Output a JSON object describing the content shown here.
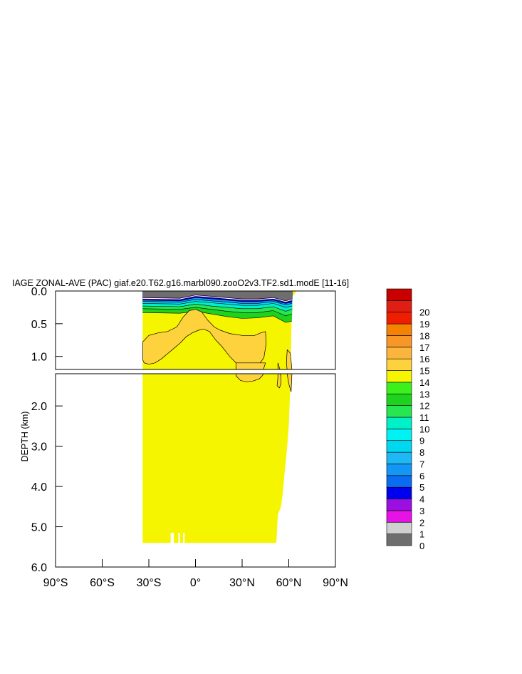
{
  "chart_data": {
    "type": "heatmap",
    "title": "IAGE ZONAL-AVE (PAC) giaf.e20.T62.g16.marbl090.zooO2v3.TF2.sd1.modE [11-16]",
    "ylabel": "DEPTH (km)",
    "xlabel": "",
    "x_range": [
      -90,
      90
    ],
    "y_range": [
      0,
      6
    ],
    "y_axis_inverted": true,
    "upper_panel_range": [
      0,
      1.2
    ],
    "lower_panel_range": [
      1.2,
      6
    ],
    "x_ticks": [
      {
        "value": -90,
        "label": "90°S"
      },
      {
        "value": -60,
        "label": "60°S"
      },
      {
        "value": -30,
        "label": "30°S"
      },
      {
        "value": 0,
        "label": "0°"
      },
      {
        "value": 30,
        "label": "30°N"
      },
      {
        "value": 60,
        "label": "60°N"
      },
      {
        "value": 90,
        "label": "90°N"
      }
    ],
    "y_ticks_upper": [
      {
        "value": 0,
        "label": "0.0"
      },
      {
        "value": 0.5,
        "label": "0.5"
      },
      {
        "value": 1.0,
        "label": "1.0"
      }
    ],
    "y_ticks_lower": [
      {
        "value": 2,
        "label": "2.0"
      },
      {
        "value": 3,
        "label": "3.0"
      },
      {
        "value": 4,
        "label": "4.0"
      },
      {
        "value": 5,
        "label": "5.0"
      },
      {
        "value": 6,
        "label": "6.0"
      }
    ],
    "colorbar": {
      "levels": [
        "0",
        "1",
        "2",
        "3",
        "4",
        "5",
        "6",
        "7",
        "8",
        "9",
        "10",
        "11",
        "12",
        "13",
        "14",
        "15",
        "16",
        "17",
        "18",
        "19",
        "20"
      ],
      "colors": [
        "#6e6e6e",
        "#d0d0d0",
        "#e612e6",
        "#9b10e0",
        "#0000f0",
        "#0a6cf0",
        "#1496f5",
        "#1eb8f5",
        "#00d8f0",
        "#00f2f2",
        "#00f0c8",
        "#28e650",
        "#1ed21e",
        "#3cf01e",
        "#f5f500",
        "#fed23c",
        "#fbb43c",
        "#f89628",
        "#f58200",
        "#f01e00",
        "#e11e14",
        "#c80000"
      ]
    },
    "domain": {
      "lat_min": -34,
      "deep_boundary": [
        [
          -34,
          5.4
        ],
        [
          52,
          5.4
        ],
        [
          53,
          4.7
        ],
        [
          55,
          4.5
        ],
        [
          56,
          4.2
        ],
        [
          57,
          3.8
        ],
        [
          58,
          3.4
        ],
        [
          59,
          3.0
        ],
        [
          60,
          2.5
        ],
        [
          61,
          1.5
        ],
        [
          62,
          0.1
        ],
        [
          65,
          0.0
        ]
      ],
      "notches": [
        [
          -16,
          -14
        ],
        [
          -11,
          -10
        ],
        [
          -8,
          -7
        ]
      ],
      "notch_top_depth": 5.15
    },
    "surface_layers": [
      {
        "value": 0,
        "top": [
          [
            -34,
            0.0
          ],
          [
            65,
            0.0
          ]
        ],
        "bottom": [
          [
            -34,
            0.1
          ],
          [
            -10,
            0.11
          ],
          [
            0,
            0.06
          ],
          [
            10,
            0.08
          ],
          [
            20,
            0.1
          ],
          [
            30,
            0.12
          ],
          [
            40,
            0.12
          ],
          [
            50,
            0.1
          ],
          [
            58,
            0.15
          ],
          [
            62,
            0.12
          ]
        ]
      },
      {
        "value": 3,
        "bottom": [
          [
            -34,
            0.13
          ],
          [
            -10,
            0.13
          ],
          [
            0,
            0.08
          ],
          [
            10,
            0.1
          ],
          [
            20,
            0.12
          ],
          [
            30,
            0.14
          ],
          [
            40,
            0.14
          ],
          [
            50,
            0.12
          ],
          [
            58,
            0.17
          ],
          [
            62,
            0.15
          ]
        ]
      },
      {
        "value": 4,
        "bottom": [
          [
            -34,
            0.14
          ],
          [
            -10,
            0.15
          ],
          [
            0,
            0.1
          ],
          [
            10,
            0.12
          ],
          [
            20,
            0.14
          ],
          [
            30,
            0.16
          ],
          [
            40,
            0.16
          ],
          [
            50,
            0.14
          ],
          [
            58,
            0.19
          ],
          [
            62,
            0.17
          ]
        ]
      },
      {
        "value": 6,
        "bottom": [
          [
            -34,
            0.16
          ],
          [
            -10,
            0.17
          ],
          [
            0,
            0.13
          ],
          [
            10,
            0.15
          ],
          [
            20,
            0.17
          ],
          [
            30,
            0.19
          ],
          [
            40,
            0.19
          ],
          [
            50,
            0.16
          ],
          [
            58,
            0.21
          ],
          [
            62,
            0.19
          ]
        ]
      },
      {
        "value": 8,
        "bottom": [
          [
            -34,
            0.19
          ],
          [
            -10,
            0.2
          ],
          [
            0,
            0.16
          ],
          [
            10,
            0.18
          ],
          [
            20,
            0.2
          ],
          [
            30,
            0.22
          ],
          [
            40,
            0.22
          ],
          [
            50,
            0.19
          ],
          [
            58,
            0.25
          ],
          [
            62,
            0.23
          ]
        ]
      },
      {
        "value": 10,
        "bottom": [
          [
            -34,
            0.23
          ],
          [
            -10,
            0.24
          ],
          [
            0,
            0.2
          ],
          [
            10,
            0.23
          ],
          [
            20,
            0.25
          ],
          [
            30,
            0.27
          ],
          [
            40,
            0.27
          ],
          [
            50,
            0.24
          ],
          [
            58,
            0.31
          ],
          [
            62,
            0.28
          ]
        ]
      },
      {
        "value": 11,
        "bottom": [
          [
            -34,
            0.27
          ],
          [
            -10,
            0.28
          ],
          [
            0,
            0.25
          ],
          [
            10,
            0.28
          ],
          [
            20,
            0.31
          ],
          [
            30,
            0.33
          ],
          [
            40,
            0.33
          ],
          [
            50,
            0.3
          ],
          [
            58,
            0.38
          ],
          [
            62,
            0.35
          ]
        ]
      },
      {
        "value": 12,
        "bottom": [
          [
            -34,
            0.33
          ],
          [
            -10,
            0.34
          ],
          [
            0,
            0.31
          ],
          [
            10,
            0.35
          ],
          [
            20,
            0.39
          ],
          [
            30,
            0.42
          ],
          [
            40,
            0.41
          ],
          [
            50,
            0.38
          ],
          [
            58,
            0.48
          ],
          [
            62,
            0.46
          ]
        ]
      }
    ],
    "value_13_regions": [
      {
        "name": "southern-lobe",
        "points": [
          [
            -34,
            0.78
          ],
          [
            -30,
            0.68
          ],
          [
            -24,
            0.64
          ],
          [
            -18,
            0.62
          ],
          [
            -12,
            0.55
          ],
          [
            -8,
            0.4
          ],
          [
            -4,
            0.3
          ],
          [
            0,
            0.28
          ],
          [
            4,
            0.32
          ],
          [
            8,
            0.45
          ],
          [
            12,
            0.55
          ],
          [
            16,
            0.6
          ],
          [
            22,
            0.65
          ],
          [
            30,
            0.68
          ],
          [
            38,
            0.68
          ],
          [
            42,
            0.64
          ],
          [
            45,
            0.62
          ],
          [
            45.5,
            0.8
          ],
          [
            44,
            1.02
          ],
          [
            41,
            1.12
          ],
          [
            38,
            1.14
          ],
          [
            35,
            1.12
          ],
          [
            30,
            1.1
          ],
          [
            26,
            1.1
          ],
          [
            22,
            1.0
          ],
          [
            17,
            0.85
          ],
          [
            13,
            0.75
          ],
          [
            9,
            0.62
          ],
          [
            5,
            0.58
          ],
          [
            2,
            0.6
          ],
          [
            -2,
            0.64
          ],
          [
            -6,
            0.7
          ],
          [
            -10,
            0.8
          ],
          [
            -14,
            0.88
          ],
          [
            -18,
            0.96
          ],
          [
            -22,
            1.04
          ],
          [
            -26,
            1.1
          ],
          [
            -30,
            1.12
          ],
          [
            -33,
            1.1
          ],
          [
            -34,
            1.05
          ]
        ]
      },
      {
        "name": "mid-depth-patch",
        "points": [
          [
            26,
            1.1
          ],
          [
            45,
            1.1
          ],
          [
            43,
            1.25
          ],
          [
            41,
            1.33
          ],
          [
            37,
            1.38
          ],
          [
            33,
            1.4
          ],
          [
            29,
            1.37
          ],
          [
            26,
            1.25
          ]
        ]
      },
      {
        "name": "northern-sliver",
        "points": [
          [
            53,
            1.1
          ],
          [
            55,
            1.25
          ],
          [
            55,
            1.45
          ],
          [
            54,
            1.55
          ],
          [
            52.5,
            1.5
          ],
          [
            53,
            1.3
          ]
        ]
      },
      {
        "name": "northern-edge",
        "points": [
          [
            59,
            0.9
          ],
          [
            61,
            0.95
          ],
          [
            62,
            1.2
          ],
          [
            61.5,
            1.65
          ],
          [
            60,
            1.45
          ],
          [
            58.5,
            1.1
          ]
        ]
      }
    ]
  }
}
